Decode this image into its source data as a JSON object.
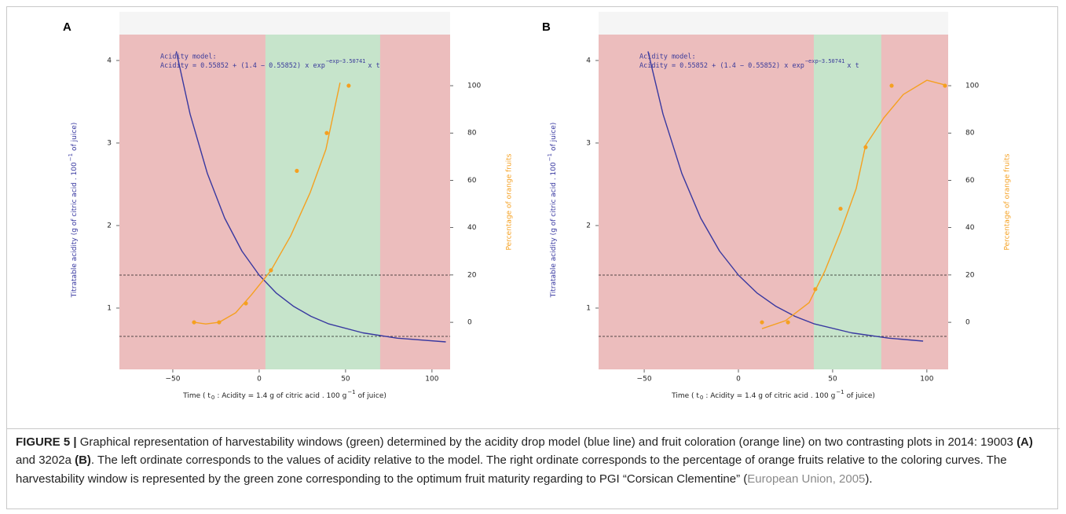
{
  "chart_data": [
    {
      "type": "line",
      "panel_label": "A",
      "annotation_title": "Acidity model:",
      "annotation_formula": [
        "Acidity = 0.55852 + (1.4 − 0.55852) x exp",
        "−exp−3.50741",
        "x t"
      ],
      "x_label": [
        "Time ( t",
        "0",
        ": Acidity = 1.4 g of citric acid . 100 g",
        "−1",
        "of juice)"
      ],
      "y_label": [
        "Titratable acidity (g of citric acid . 100",
        "−1",
        "of juice)"
      ],
      "y2_label": "Percentage of orange fruits",
      "xlim": [
        -80.9,
        110.5
      ],
      "xticks": [
        {
          "value": -50,
          "label": "−50"
        },
        0,
        50,
        100
      ],
      "ylim": [
        0.257,
        4.314
      ],
      "yticks": [
        1,
        2,
        3,
        4
      ],
      "y2lim": [
        -19.9,
        121.6
      ],
      "y2ticks": [
        0,
        20,
        40,
        60,
        80,
        100
      ],
      "background_color": "#ecbdbd",
      "window_color": "#c6e4cb",
      "harvest_window": [
        3.6,
        70
      ],
      "hlines": [
        1.4,
        0.657
      ],
      "series": [
        {
          "mode": "lines",
          "color": "#3838a0",
          "x": [
            -48,
            -40,
            -30,
            -20,
            -10,
            0,
            10,
            20,
            30,
            40,
            60,
            80,
            108
          ],
          "values": [
            4.11,
            3.35,
            2.63,
            2.09,
            1.69,
            1.4,
            1.18,
            1.02,
            0.9,
            0.81,
            0.7,
            0.635,
            0.59
          ]
        },
        {
          "mode": "markers",
          "axis": "y2",
          "color": "#f5a020",
          "x": [
            -37.7,
            -23.2,
            -7.7,
            6.8,
            21.8,
            39.1,
            51.8
          ],
          "values": [
            0,
            0,
            8,
            22,
            64,
            80,
            100
          ]
        },
        {
          "mode": "lines",
          "axis": "y2",
          "color": "#f5a020",
          "x": [
            -37.7,
            -30.9,
            -23.2,
            -13.6,
            -4.5,
            6.8,
            18.2,
            29.5,
            38.6,
            46.8
          ],
          "values": [
            0,
            -0.7,
            0,
            4,
            11.6,
            21.9,
            36.5,
            54.8,
            73.1,
            101.3
          ]
        }
      ]
    },
    {
      "type": "line",
      "panel_label": "B",
      "annotation_title": "Acidity model:",
      "annotation_formula": [
        "Acidity = 0.55852 + (1.4 − 0.55852) x exp",
        "−exp−3.50741",
        "x t"
      ],
      "x_label": [
        "Time ( t",
        "0",
        ": Acidity = 1.4 g of citric acid . 100 g",
        "−1",
        "of juice)"
      ],
      "y_label": [
        "Titratable acidity (g of citric acid . 100",
        "−1",
        "of juice)"
      ],
      "y2_label": "Percentage of orange fruits",
      "xlim": [
        -74.2,
        111.3
      ],
      "xticks": [
        {
          "value": -50,
          "label": "−50"
        },
        0,
        50,
        100
      ],
      "ylim": [
        0.257,
        4.314
      ],
      "yticks": [
        1,
        2,
        3,
        4
      ],
      "y2lim": [
        -19.9,
        121.6
      ],
      "y2ticks": [
        0,
        20,
        40,
        60,
        80,
        100
      ],
      "background_color": "#ecbdbd",
      "window_color": "#c6e4cb",
      "harvest_window": [
        40,
        75.8
      ],
      "hlines": [
        1.4,
        0.657
      ],
      "series": [
        {
          "mode": "lines",
          "color": "#3838a0",
          "x": [
            -48,
            -40,
            -30,
            -20,
            -10,
            0,
            10,
            20,
            30,
            40,
            60,
            80,
            98
          ],
          "values": [
            4.11,
            3.35,
            2.63,
            2.09,
            1.69,
            1.4,
            1.18,
            1.02,
            0.9,
            0.81,
            0.7,
            0.635,
            0.6
          ]
        },
        {
          "mode": "markers",
          "axis": "y2",
          "color": "#f5a020",
          "x": [
            12.5,
            26.3,
            40.8,
            54.2,
            67.5,
            81.3,
            109.6
          ],
          "values": [
            0,
            0,
            14,
            48,
            74,
            100,
            100
          ]
        },
        {
          "mode": "lines",
          "axis": "y2",
          "color": "#f5a020",
          "x": [
            12.5,
            25,
            37.5,
            45.8,
            54.2,
            62.5,
            67.5,
            77.1,
            87.5,
            100,
            109.6
          ],
          "values": [
            -2.7,
            0.7,
            8.3,
            21.6,
            38.2,
            56.5,
            74.8,
            86.4,
            96.3,
            102.3,
            100.3
          ]
        }
      ]
    }
  ],
  "caption": {
    "label": "FIGURE 5 |",
    "text": "Graphical representation of harvestability windows (green) determined by the acidity drop model (blue line) and fruit coloration (orange line) on two contrasting plots in 2014: 19003",
    "ref_a": "(A)",
    "and": "and 3202a",
    "ref_b": "(B)",
    "rest": ". The left ordinate corresponds to the values of acidity relative to the model. The right ordinate corresponds to the percentage of orange fruits relative to the coloring curves. The harvestability window is represented by the green zone corresponding to the optimum fruit maturity regarding to PGI “Corsican Clementine” (",
    "citation": "European Union, 2005",
    "end": ")."
  }
}
